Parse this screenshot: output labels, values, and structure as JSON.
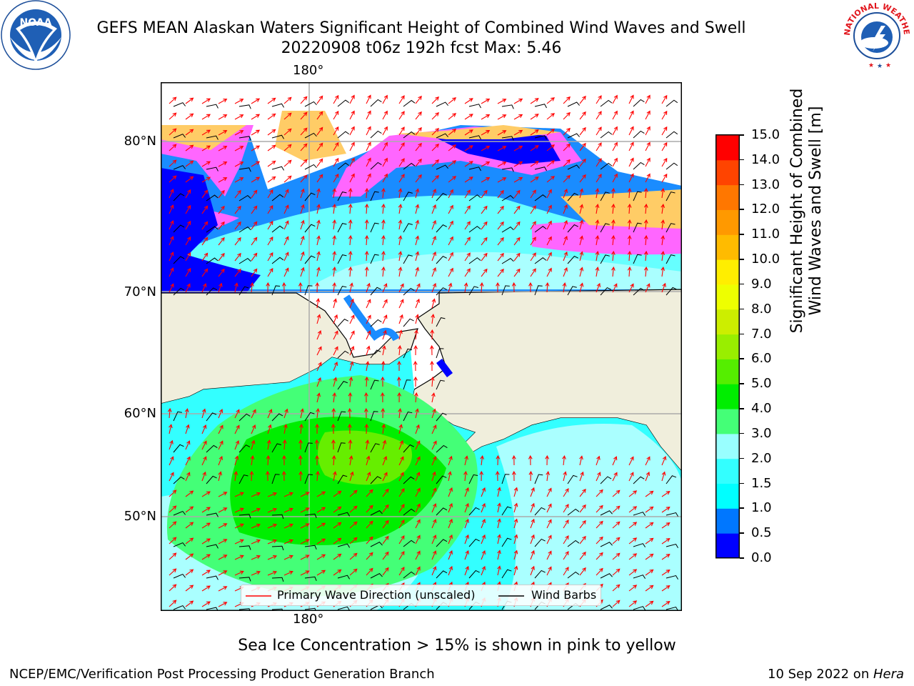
{
  "title": {
    "line1": "GEFS MEAN Alaskan Waters Significant Height of Combined Wind Waves and Swell",
    "line2": "20220908 t06z 192h fcst   Max: 5.46"
  },
  "logos": {
    "left": "NOAA",
    "right": "NATIONAL WEATHER SERVICE"
  },
  "map": {
    "lon_labels": [
      "180°",
      "180°"
    ],
    "lat_labels": [
      "80°N",
      "70°N",
      "60°N",
      "50°N"
    ],
    "legend": {
      "wave_label": "Primary Wave Direction (unscaled)",
      "barb_label": "Wind Barbs",
      "wave_color": "#ff0000",
      "barb_color": "#000000"
    }
  },
  "colorbar": {
    "label": "Significant Height of Combined Wind Waves and Swell [m]",
    "ticks": [
      "0.0",
      "0.5",
      "1.0",
      "1.5",
      "2.0",
      "3.0",
      "4.0",
      "5.0",
      "6.0",
      "7.0",
      "8.0",
      "9.0",
      "10.0",
      "11.0",
      "12.0",
      "13.0",
      "14.0",
      "15.0"
    ],
    "colors": [
      "#0000ff",
      "#0077ff",
      "#00ffff",
      "#33ffff",
      "#99ffff",
      "#44ff77",
      "#00ee00",
      "#55ee00",
      "#99ee00",
      "#ccee00",
      "#eeff00",
      "#ffee00",
      "#ffbb00",
      "#ff9900",
      "#ff7700",
      "#ff4400",
      "#ff0000"
    ]
  },
  "note": "Sea Ice Concentration > 15% is shown in pink to yellow",
  "footer": {
    "left": "NCEP/EMC/Verification Post Processing Product Generation Branch",
    "date": "10 Sep 2022 on ",
    "host": "Hera"
  }
}
